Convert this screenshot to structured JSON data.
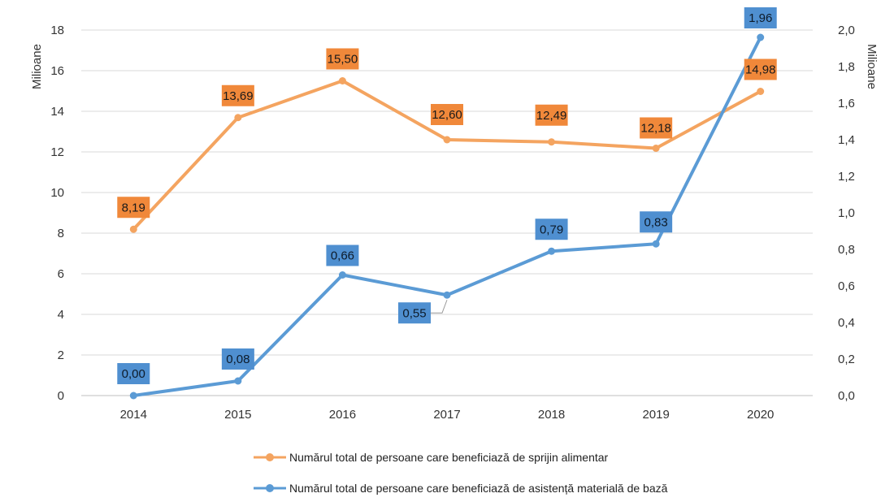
{
  "chart_data": {
    "type": "line",
    "categories": [
      "2014",
      "2015",
      "2016",
      "2017",
      "2018",
      "2019",
      "2020"
    ],
    "y_left": {
      "label": "Milioane",
      "range": [
        0,
        18
      ],
      "ticks": [
        "0",
        "2",
        "4",
        "6",
        "8",
        "10",
        "12",
        "14",
        "16",
        "18"
      ]
    },
    "y_right": {
      "label": "Milioane",
      "range": [
        0,
        2.0
      ],
      "ticks": [
        "0,0",
        "0,2",
        "0,4",
        "0,6",
        "0,8",
        "1,0",
        "1,2",
        "1,4",
        "1,6",
        "1,8",
        "2,0"
      ]
    },
    "grid": "horizontal",
    "legend_position": "bottom",
    "series": [
      {
        "name": "Numărul total de persoane care beneficiază de sprijin alimentar",
        "axis": "left",
        "color": "#F4A460",
        "label_bg": "#F0883A",
        "values": [
          8.19,
          13.69,
          15.5,
          12.6,
          12.49,
          12.18,
          14.98
        ],
        "labels": [
          "8,19",
          "13,69",
          "15,50",
          "12,60",
          "12,49",
          "12,18",
          "14,98"
        ]
      },
      {
        "name": "Numărul total de persoane care beneficiază de asistență materială de bază",
        "axis": "right",
        "color": "#5B9BD5",
        "label_bg": "#4F8FD0",
        "values": [
          0.0,
          0.08,
          0.66,
          0.55,
          0.79,
          0.83,
          1.96
        ],
        "labels": [
          "0,00",
          "0,08",
          "0,66",
          "0,55",
          "0,79",
          "0,83",
          "1,96"
        ]
      }
    ]
  }
}
